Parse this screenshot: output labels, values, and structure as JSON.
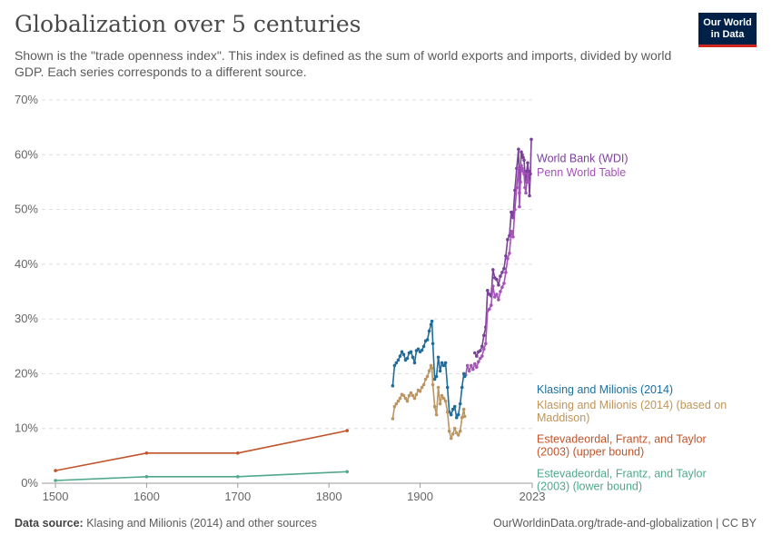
{
  "header": {
    "title": "Globalization over 5 centuries",
    "subtitle": "Shown is the \"trade openness index\". This index is defined as the sum of world exports and imports, divided by world GDP. Each series corresponds to a different source.",
    "logo_line1": "Our World",
    "logo_line2": "in Data"
  },
  "footer": {
    "source_label": "Data source:",
    "source_text": "Klasing and Milionis (2014) and other sources",
    "right_text": "OurWorldinData.org/trade-and-globalization | CC BY"
  },
  "colors": {
    "brand": "#002147",
    "accent": "#ce261e"
  },
  "chart_data": {
    "type": "line",
    "title": "Globalization over 5 centuries",
    "xlim": [
      1485,
      2023
    ],
    "ylim": [
      0,
      70
    ],
    "x_ticks": [
      1500,
      1600,
      1700,
      1800,
      1900,
      2023
    ],
    "x_tick_labels": [
      "1500",
      "1600",
      "1700",
      "1800",
      "1900",
      "2023"
    ],
    "y_ticks": [
      0,
      10,
      20,
      30,
      40,
      50,
      60,
      70
    ],
    "y_tick_labels": [
      "0%",
      "10%",
      "20%",
      "30%",
      "40%",
      "50%",
      "60%",
      "70%"
    ],
    "grid": "horizontal dashed",
    "legend": "labels at line ends, right",
    "series": [
      {
        "name": "World Bank (WDI)",
        "color": "#7b3f9c",
        "label_lines": [
          "World Bank (WDI)"
        ],
        "label_y_value": 58.6,
        "points": [
          [
            1960,
            23.8
          ],
          [
            1962,
            23.2
          ],
          [
            1964,
            24.0
          ],
          [
            1966,
            24.2
          ],
          [
            1968,
            25.0
          ],
          [
            1970,
            27.0
          ],
          [
            1972,
            28.5
          ],
          [
            1974,
            35.2
          ],
          [
            1976,
            34.5
          ],
          [
            1978,
            34.2
          ],
          [
            1980,
            39.0
          ],
          [
            1982,
            37.5
          ],
          [
            1984,
            37.2
          ],
          [
            1986,
            36.2
          ],
          [
            1988,
            37.8
          ],
          [
            1990,
            38.5
          ],
          [
            1992,
            39.2
          ],
          [
            1994,
            41.5
          ],
          [
            1996,
            44.5
          ],
          [
            1998,
            45.2
          ],
          [
            2000,
            49.5
          ],
          [
            2002,
            48.5
          ],
          [
            2004,
            53.5
          ],
          [
            2006,
            57.5
          ],
          [
            2008,
            61.0
          ],
          [
            2009,
            53.0
          ],
          [
            2010,
            57.5
          ],
          [
            2011,
            60.5
          ],
          [
            2012,
            60.0
          ],
          [
            2013,
            59.5
          ],
          [
            2014,
            59.0
          ],
          [
            2015,
            56.5
          ],
          [
            2016,
            55.0
          ],
          [
            2017,
            57.0
          ],
          [
            2018,
            58.5
          ],
          [
            2019,
            57.0
          ],
          [
            2020,
            52.5
          ],
          [
            2021,
            56.5
          ],
          [
            2022,
            62.8
          ]
        ]
      },
      {
        "name": "Penn World Table",
        "color": "#a652ba",
        "label_lines": [
          "Penn World Table"
        ],
        "label_y_value": 56.1,
        "points": [
          [
            1950,
            19.8
          ],
          [
            1952,
            21.5
          ],
          [
            1954,
            20.5
          ],
          [
            1956,
            21.5
          ],
          [
            1958,
            20.8
          ],
          [
            1960,
            21.8
          ],
          [
            1962,
            21.2
          ],
          [
            1964,
            22.2
          ],
          [
            1966,
            22.8
          ],
          [
            1968,
            23.2
          ],
          [
            1970,
            24.5
          ],
          [
            1972,
            25.5
          ],
          [
            1974,
            31.5
          ],
          [
            1976,
            31.8
          ],
          [
            1978,
            32.5
          ],
          [
            1980,
            36.0
          ],
          [
            1982,
            34.0
          ],
          [
            1984,
            34.5
          ],
          [
            1986,
            33.5
          ],
          [
            1988,
            35.0
          ],
          [
            1990,
            35.8
          ],
          [
            1992,
            36.5
          ],
          [
            1994,
            38.5
          ],
          [
            1996,
            41.0
          ],
          [
            1998,
            42.0
          ],
          [
            2000,
            46.0
          ],
          [
            2002,
            45.0
          ],
          [
            2004,
            50.0
          ],
          [
            2006,
            54.0
          ],
          [
            2008,
            57.5
          ],
          [
            2009,
            50.5
          ],
          [
            2010,
            55.0
          ],
          [
            2011,
            58.0
          ],
          [
            2012,
            57.5
          ],
          [
            2013,
            57.0
          ],
          [
            2014,
            56.5
          ],
          [
            2015,
            54.0
          ],
          [
            2016,
            53.0
          ],
          [
            2017,
            55.0
          ],
          [
            2018,
            56.5
          ],
          [
            2019,
            55.0
          ]
        ]
      },
      {
        "name": "Klasing and Milionis (2014)",
        "color": "#1a6fa0",
        "label_lines": [
          "Klasing and Milionis (2014)"
        ],
        "label_y_value": 16.4,
        "points": [
          [
            1870,
            17.8
          ],
          [
            1872,
            21.5
          ],
          [
            1874,
            22.0
          ],
          [
            1876,
            22.5
          ],
          [
            1878,
            23.2
          ],
          [
            1880,
            24.0
          ],
          [
            1882,
            23.5
          ],
          [
            1884,
            22.5
          ],
          [
            1886,
            22.8
          ],
          [
            1888,
            23.8
          ],
          [
            1890,
            24.0
          ],
          [
            1892,
            23.0
          ],
          [
            1894,
            22.0
          ],
          [
            1896,
            24.2
          ],
          [
            1898,
            24.5
          ],
          [
            1900,
            24.0
          ],
          [
            1902,
            24.3
          ],
          [
            1904,
            25.0
          ],
          [
            1906,
            26.0
          ],
          [
            1908,
            26.2
          ],
          [
            1910,
            27.8
          ],
          [
            1912,
            29.0
          ],
          [
            1913,
            29.6
          ],
          [
            1914,
            25.5
          ],
          [
            1916,
            19.0
          ],
          [
            1918,
            19.5
          ],
          [
            1920,
            23.0
          ],
          [
            1922,
            20.5
          ],
          [
            1924,
            22.0
          ],
          [
            1926,
            21.5
          ],
          [
            1928,
            22.0
          ],
          [
            1930,
            17.5
          ],
          [
            1932,
            13.0
          ],
          [
            1934,
            12.5
          ],
          [
            1936,
            13.5
          ],
          [
            1938,
            14.0
          ],
          [
            1940,
            12.0
          ],
          [
            1942,
            12.5
          ],
          [
            1944,
            14.5
          ],
          [
            1946,
            17.5
          ],
          [
            1948,
            20.0
          ],
          [
            1949,
            19.5
          ]
        ]
      },
      {
        "name": "Klasing and Milionis (2014) (based on Maddison)",
        "color": "#c0955a",
        "label_lines": [
          "Klasing and Milionis (2014) (based on",
          "Maddison)"
        ],
        "label_y_value": 13.6,
        "points": [
          [
            1870,
            11.8
          ],
          [
            1872,
            14.0
          ],
          [
            1874,
            14.5
          ],
          [
            1876,
            15.0
          ],
          [
            1878,
            15.5
          ],
          [
            1880,
            16.2
          ],
          [
            1882,
            16.0
          ],
          [
            1884,
            15.5
          ],
          [
            1886,
            15.0
          ],
          [
            1888,
            16.0
          ],
          [
            1890,
            16.5
          ],
          [
            1892,
            16.0
          ],
          [
            1894,
            15.5
          ],
          [
            1896,
            16.2
          ],
          [
            1898,
            17.0
          ],
          [
            1900,
            16.8
          ],
          [
            1902,
            17.5
          ],
          [
            1904,
            18.0
          ],
          [
            1906,
            19.0
          ],
          [
            1908,
            19.5
          ],
          [
            1910,
            20.5
          ],
          [
            1912,
            21.5
          ],
          [
            1913,
            21.0
          ],
          [
            1914,
            18.0
          ],
          [
            1916,
            14.0
          ],
          [
            1918,
            12.5
          ],
          [
            1920,
            17.5
          ],
          [
            1922,
            14.5
          ],
          [
            1924,
            16.0
          ],
          [
            1926,
            15.5
          ],
          [
            1928,
            15.0
          ],
          [
            1930,
            13.0
          ],
          [
            1932,
            9.5
          ],
          [
            1934,
            8.2
          ],
          [
            1936,
            9.0
          ],
          [
            1938,
            10.0
          ],
          [
            1940,
            9.2
          ],
          [
            1942,
            8.8
          ],
          [
            1944,
            9.5
          ],
          [
            1946,
            12.0
          ],
          [
            1948,
            13.5
          ],
          [
            1949,
            12.2
          ]
        ]
      },
      {
        "name": "Estevadeordal, Frantz, and Taylor (2003) (upper bound)",
        "color": "#c0552b",
        "label_lines": [
          "Estevadeordal, Frantz, and Taylor",
          "(2003) (upper bound)"
        ],
        "label_y_value": 7.4,
        "points": [
          [
            1500,
            2.3
          ],
          [
            1600,
            5.5
          ],
          [
            1700,
            5.5
          ],
          [
            1820,
            9.6
          ]
        ]
      },
      {
        "name": "Estevadeordal, Frantz, and Taylor (2003) (lower bound)",
        "color": "#4fa88c",
        "label_lines": [
          "Estevadeordal, Frantz, and Taylor",
          "(2003) (lower bound)"
        ],
        "label_y_value": 1.1,
        "points": [
          [
            1500,
            0.5
          ],
          [
            1600,
            1.2
          ],
          [
            1700,
            1.2
          ],
          [
            1820,
            2.1
          ]
        ]
      }
    ]
  }
}
